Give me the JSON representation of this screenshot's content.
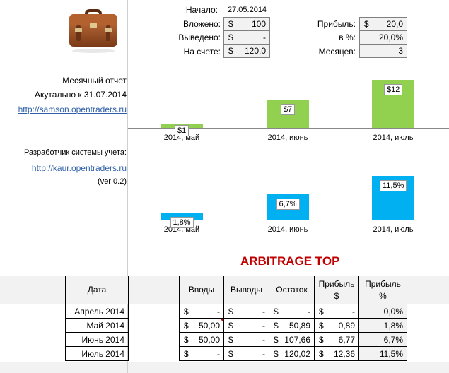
{
  "summary": {
    "start_label": "Начало:",
    "start_date": "27.05.2014",
    "invested_label": "Вложено:",
    "invested_currency": "$",
    "invested_value": "100",
    "withdrawn_label": "Выведено:",
    "withdrawn_currency": "$",
    "withdrawn_value": "-",
    "balance_label": "На счете:",
    "balance_currency": "$",
    "balance_value": "120,0",
    "profit_label": "Прибыль:",
    "profit_currency": "$",
    "profit_value": "20,0",
    "percent_label": "в %:",
    "percent_value": "20,0%",
    "months_label": "Месяцев:",
    "months_value": "3"
  },
  "left": {
    "report_title": "Месячный отчет",
    "actual_text": "Акутально к 31.07.2014",
    "samson_link": "http://samson.opentraders.ru",
    "developer_text": "Разработчик системы учета:",
    "kaur_link": "http://kaur.opentraders.ru",
    "version": "(ver 0.2)",
    "briefcase_icon": "briefcase-icon"
  },
  "chart_data": [
    {
      "type": "bar",
      "categories": [
        "2014, май",
        "2014, июнь",
        "2014, июль"
      ],
      "values": [
        1,
        7,
        12
      ],
      "data_labels": [
        "$1",
        "$7",
        "$12"
      ],
      "color": "#92d050"
    },
    {
      "type": "bar",
      "categories": [
        "2014, май",
        "2014, июнь",
        "2014, июль"
      ],
      "values": [
        1.8,
        6.7,
        11.5
      ],
      "data_labels": [
        "1,8%",
        "6,7%",
        "11,5%"
      ],
      "color": "#00b0f0"
    }
  ],
  "table": {
    "title": "ARBITRAGE TOP",
    "headers": {
      "date": "Дата",
      "deposits": "Вводы",
      "withdrawals": "Выводы",
      "balance": "Остаток",
      "profit_usd_1": "Прибыль",
      "profit_usd_2": "$",
      "profit_pct_1": "Прибыль",
      "profit_pct_2": "%"
    },
    "rows": [
      {
        "date": "Апрель 2014",
        "dep_cur": "$",
        "dep": "-",
        "wd_cur": "$",
        "wd": "-",
        "bal_cur": "$",
        "bal": "-",
        "pr_cur": "$",
        "pr": "-",
        "pct": "0,0%"
      },
      {
        "date": "Май 2014",
        "dep_cur": "$",
        "dep": "50,00",
        "wd_cur": "$",
        "wd": "-",
        "bal_cur": "$",
        "bal": "50,89",
        "pr_cur": "$",
        "pr": "0,89",
        "pct": "1,8%"
      },
      {
        "date": "Июнь 2014",
        "dep_cur": "$",
        "dep": "50,00",
        "wd_cur": "$",
        "wd": "-",
        "bal_cur": "$",
        "bal": "107,66",
        "pr_cur": "$",
        "pr": "6,77",
        "pct": "6,7%"
      },
      {
        "date": "Июль 2014",
        "dep_cur": "$",
        "dep": "-",
        "wd_cur": "$",
        "wd": "-",
        "bal_cur": "$",
        "bal": "120,02",
        "pr_cur": "$",
        "pr": "12,36",
        "pct": "11,5%"
      }
    ]
  }
}
